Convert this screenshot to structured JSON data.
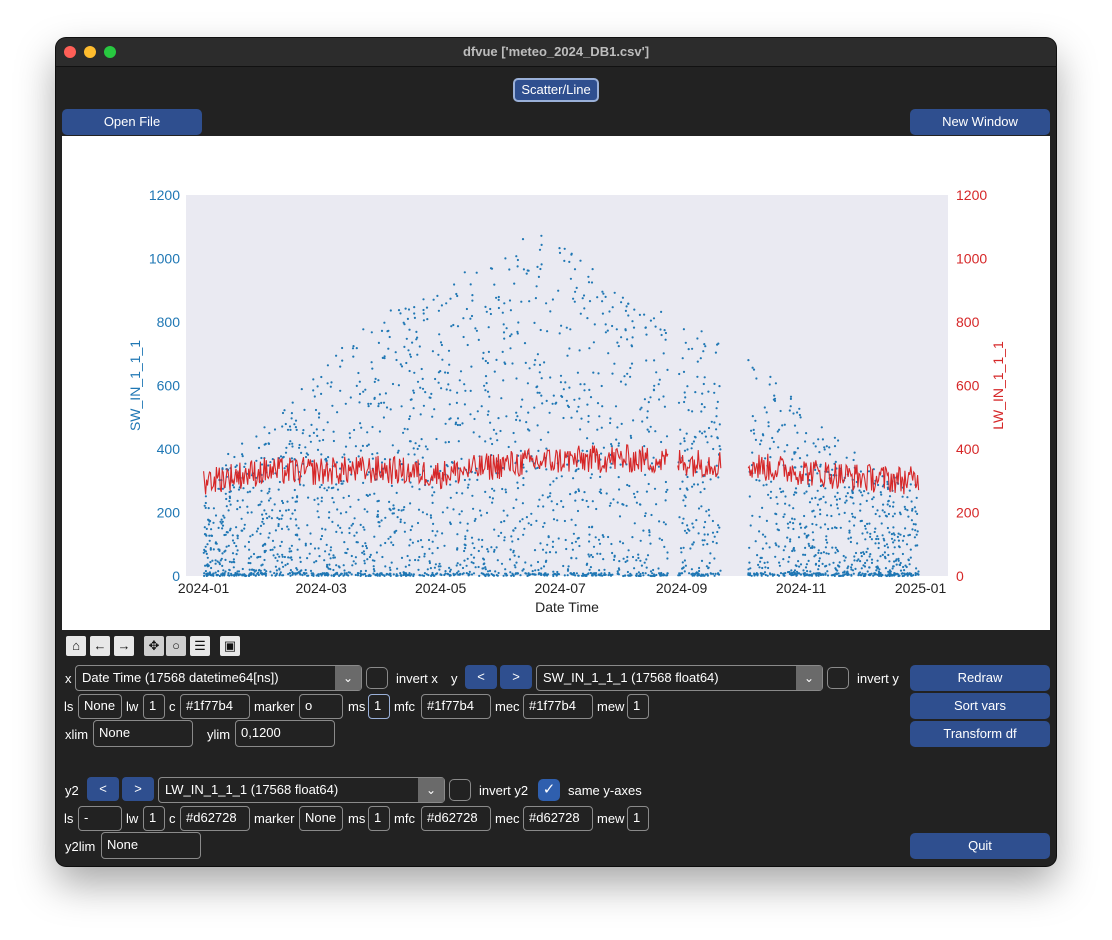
{
  "window": {
    "title": "dfvue ['meteo_2024_DB1.csv']"
  },
  "toolbar_top": {
    "scatter_line": "Scatter/Line",
    "open_file": "Open File",
    "new_window": "New Window"
  },
  "chart_data": {
    "type": "scatter",
    "xlabel": "Date Time",
    "ylabel": "SW_IN_1_1_1",
    "y2label": "LW_IN_1_1_1",
    "ylim": [
      0,
      1200
    ],
    "y2lim": [
      0,
      1200
    ],
    "xticks": [
      "2024-01",
      "2024-03",
      "2024-05",
      "2024-07",
      "2024-09",
      "2024-11",
      "2025-01"
    ],
    "yticks": [
      "0",
      "200",
      "400",
      "600",
      "800",
      "1000",
      "1200"
    ],
    "y2ticks": [
      "0",
      "200",
      "400",
      "600",
      "800",
      "1000",
      "1200"
    ],
    "series": [
      {
        "name": "SW_IN_1_1_1",
        "color": "#1f77b4",
        "style": "markers"
      },
      {
        "name": "LW_IN_1_1_1",
        "color": "#d62728",
        "style": "line"
      }
    ],
    "gaps": [
      [
        "2024-08-25",
        "2024-08-30"
      ],
      [
        "2024-09-21",
        "2024-10-05"
      ]
    ],
    "sw_envelope": [
      [
        "2024-01-01",
        250
      ],
      [
        "2024-01-15",
        400
      ],
      [
        "2024-02-01",
        480
      ],
      [
        "2024-03-01",
        650
      ],
      [
        "2024-04-01",
        850
      ],
      [
        "2024-05-01",
        920
      ],
      [
        "2024-06-01",
        1020
      ],
      [
        "2024-06-20",
        1100
      ],
      [
        "2024-07-15",
        980
      ],
      [
        "2024-08-15",
        860
      ],
      [
        "2024-09-15",
        780
      ],
      [
        "2024-10-15",
        640
      ],
      [
        "2024-11-15",
        450
      ],
      [
        "2024-12-15",
        320
      ],
      [
        "2024-12-31",
        300
      ]
    ],
    "lw_mean": [
      [
        "2024-01-01",
        300
      ],
      [
        "2024-02-01",
        330
      ],
      [
        "2024-03-01",
        330
      ],
      [
        "2024-04-01",
        335
      ],
      [
        "2024-05-01",
        320
      ],
      [
        "2024-06-01",
        350
      ],
      [
        "2024-07-01",
        365
      ],
      [
        "2024-08-01",
        370
      ],
      [
        "2024-09-01",
        360
      ],
      [
        "2024-10-01",
        350
      ],
      [
        "2024-11-01",
        330
      ],
      [
        "2024-12-01",
        310
      ],
      [
        "2024-12-31",
        300
      ]
    ]
  },
  "x_row": {
    "prefix": "x",
    "select": "Date Time (17568 datetime64[ns])",
    "invert_label": "invert x"
  },
  "y_row": {
    "prefix": "y",
    "prev": "<",
    "next": ">",
    "select": "SW_IN_1_1_1 (17568 float64)",
    "invert_label": "invert y"
  },
  "style_row1": {
    "ls_label": "ls",
    "ls": "None",
    "lw_label": "lw",
    "lw": "1",
    "c_label": "c",
    "c": "#1f77b4",
    "marker_label": "marker",
    "marker": "o",
    "ms_label": "ms",
    "ms": "1",
    "mfc_label": "mfc",
    "mfc": "#1f77b4",
    "mec_label": "mec",
    "mec": "#1f77b4",
    "mew_label": "mew",
    "mew": "1"
  },
  "lim_row": {
    "xlim_label": "xlim",
    "xlim": "None",
    "ylim_label": "ylim",
    "ylim": "0,1200"
  },
  "side_buttons": {
    "redraw": "Redraw",
    "sort_vars": "Sort vars",
    "transform_df": "Transform df",
    "quit": "Quit"
  },
  "y2_row": {
    "prefix": "y2",
    "prev": "<",
    "next": ">",
    "select": "LW_IN_1_1_1 (17568 float64)",
    "invert_label": "invert y2",
    "same_label": "same y-axes"
  },
  "style_row2": {
    "ls_label": "ls",
    "ls": "-",
    "lw_label": "lw",
    "lw": "1",
    "c_label": "c",
    "c": "#d62728",
    "marker_label": "marker",
    "marker": "None",
    "ms_label": "ms",
    "ms": "1",
    "mfc_label": "mfc",
    "mfc": "#d62728",
    "mec_label": "mec",
    "mec": "#d62728",
    "mew_label": "mew",
    "mew": "1"
  },
  "y2lim_row": {
    "label": "y2lim",
    "value": "None"
  }
}
